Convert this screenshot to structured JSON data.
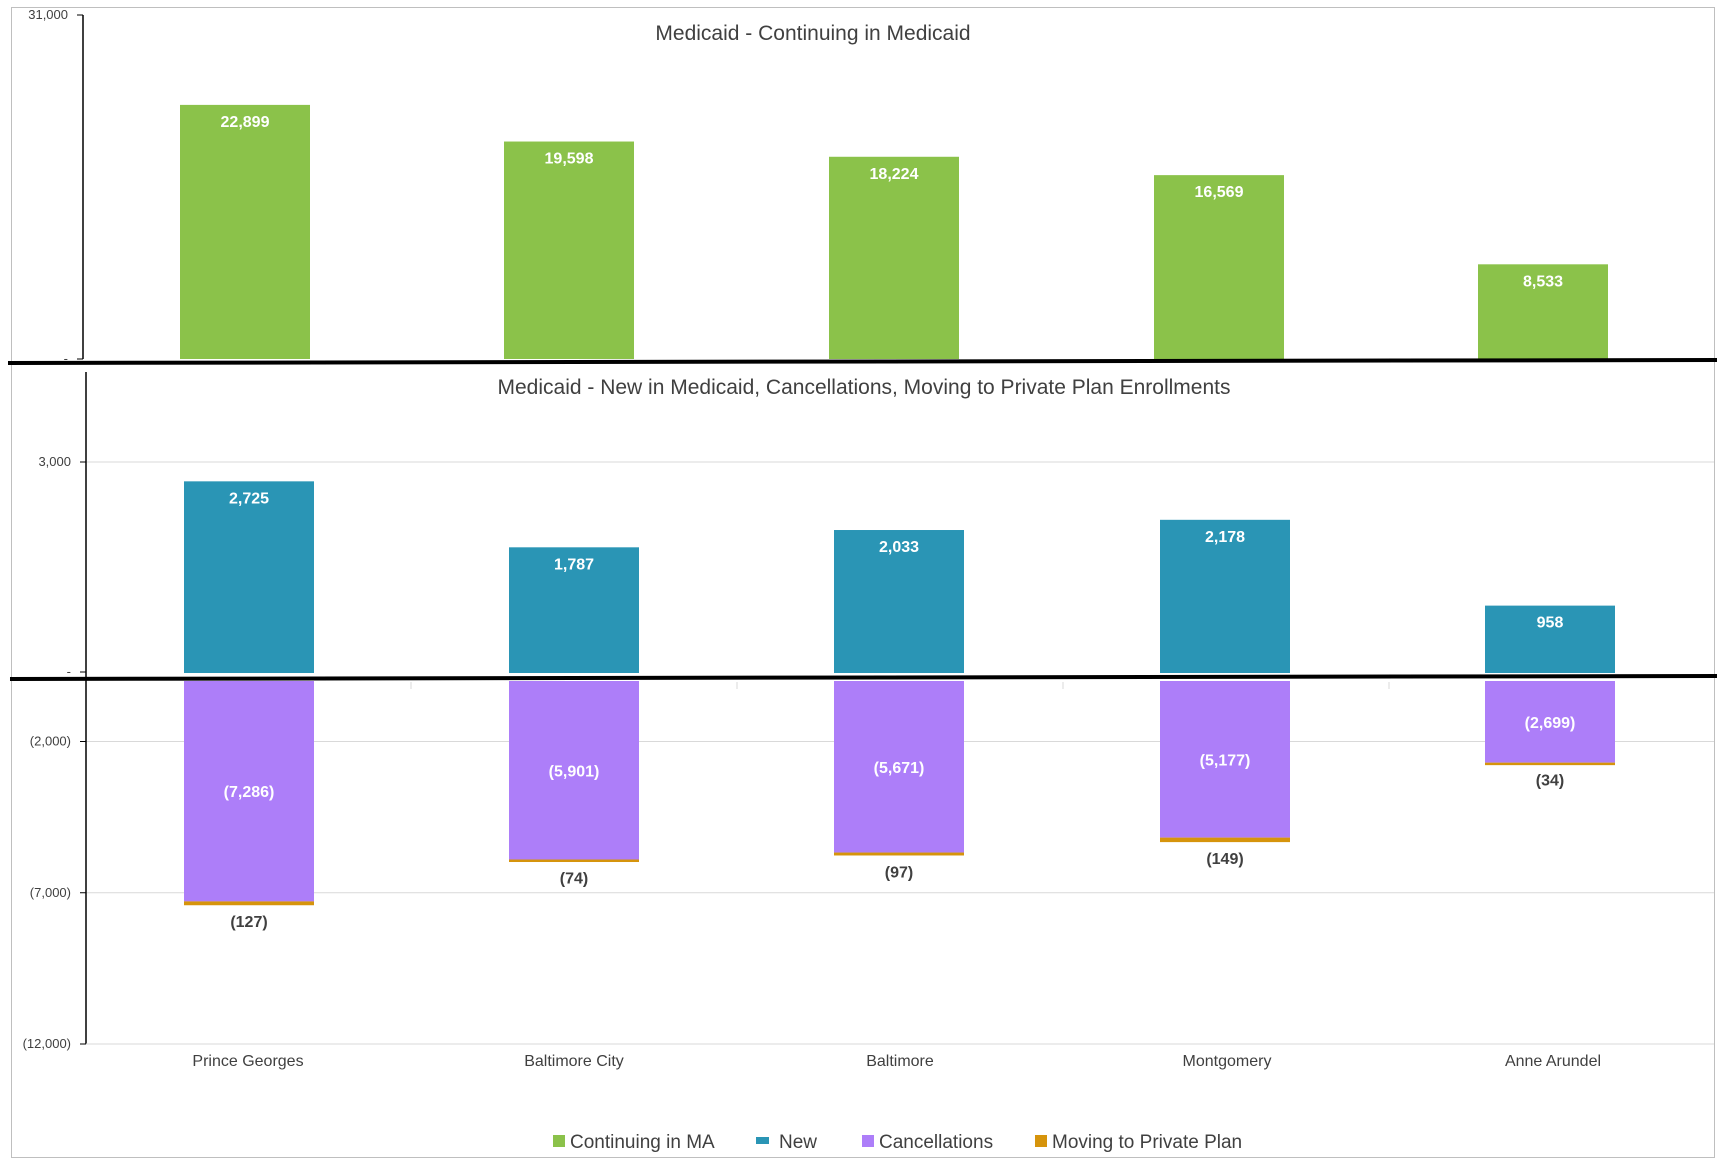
{
  "chart_data": [
    {
      "type": "bar",
      "title": "Medicaid - Continuing in Medicaid",
      "categories": [
        "Prince Georges",
        "Baltimore City",
        "Baltimore",
        "Montgomery",
        "Anne Arundel"
      ],
      "series": [
        {
          "name": "Continuing in MA",
          "values": [
            22899,
            19598,
            18224,
            16569,
            8533
          ],
          "labels": [
            "22,899",
            "19,598",
            "18,224",
            "16,569",
            "8,533"
          ]
        }
      ],
      "ylim": [
        0,
        31000
      ],
      "yticks": [
        {
          "value": 31000,
          "label": "31,000"
        },
        {
          "value": 0,
          "label": "-"
        }
      ],
      "grid": false
    },
    {
      "type": "bar",
      "title": "Medicaid - New in Medicaid, Cancellations, Moving to Private Plan Enrollments",
      "categories": [
        "Prince Georges",
        "Baltimore City",
        "Baltimore",
        "Montgomery",
        "Anne Arundel"
      ],
      "series": [
        {
          "name": "New",
          "values": [
            2725,
            1787,
            2033,
            2178,
            958
          ],
          "labels": [
            "2,725",
            "1,787",
            "2,033",
            "2,178",
            "958"
          ]
        },
        {
          "name": "Cancellations",
          "values": [
            -7286,
            -5901,
            -5671,
            -5177,
            -2699
          ],
          "labels": [
            "(7,286)",
            "(5,901)",
            "(5,671)",
            "(5,177)",
            "(2,699)"
          ]
        },
        {
          "name": "Moving to Private Plan",
          "values": [
            -127,
            -74,
            -97,
            -149,
            -34
          ],
          "labels": [
            "(127)",
            "(74)",
            "(97)",
            "(149)",
            "(34)"
          ]
        }
      ],
      "ylim": [
        -12000,
        3000
      ],
      "yticks": [
        {
          "value": 3000,
          "label": "3,000"
        },
        {
          "value": 0,
          "label": "-"
        },
        {
          "value": -2000,
          "label": "(2,000)"
        },
        {
          "value": -7000,
          "label": "(7,000)"
        },
        {
          "value": -12000,
          "label": "(12,000)"
        }
      ],
      "grid": true
    }
  ],
  "legend": {
    "position": "bottom",
    "items": [
      {
        "label": "Continuing in MA",
        "color": "#8bc24a"
      },
      {
        "label": "New",
        "color": "#2a95b5"
      },
      {
        "label": "Cancellations",
        "color": "#ad7ef9"
      },
      {
        "label": "Moving to Private Plan",
        "color": "#d6940c"
      }
    ]
  },
  "colors": {
    "continuing": "#8bc24a",
    "new": "#2a95b5",
    "cancellations": "#ad7ef9",
    "moving": "#d6940c",
    "grid": "#d9d9d9",
    "text": "#404040"
  }
}
